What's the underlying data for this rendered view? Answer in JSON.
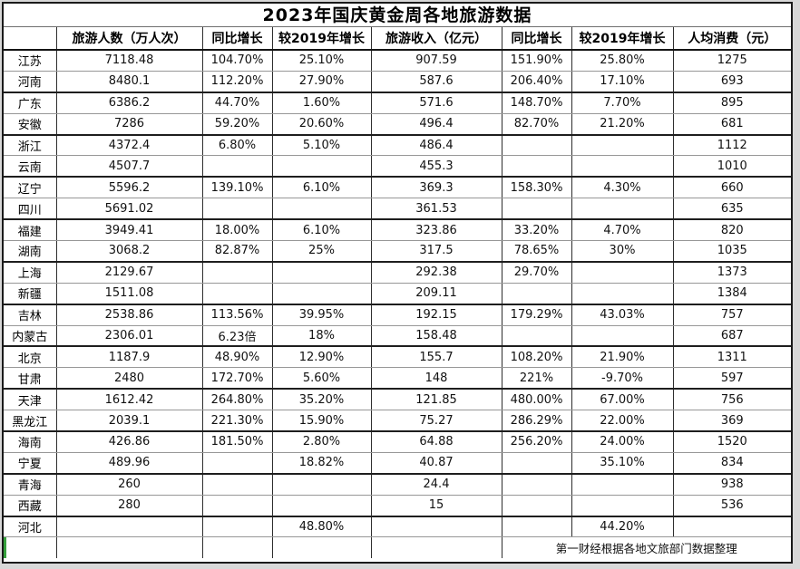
{
  "title": "2023年国庆黄金周各地旅游数据",
  "table": {
    "columns": [
      "",
      "旅游人数（万人次）",
      "同比增长",
      "较2019年增长",
      "旅游收入（亿元）",
      "同比增长",
      "较2019年增长",
      "人均消费（元）"
    ],
    "rows": [
      [
        "江苏",
        "7118.48",
        "104.70%",
        "25.10%",
        "907.59",
        "151.90%",
        "25.80%",
        "1275"
      ],
      [
        "河南",
        "8480.1",
        "112.20%",
        "27.90%",
        "587.6",
        "206.40%",
        "17.10%",
        "693"
      ],
      [
        "广东",
        "6386.2",
        "44.70%",
        "1.60%",
        "571.6",
        "148.70%",
        "7.70%",
        "895"
      ],
      [
        "安徽",
        "7286",
        "59.20%",
        "20.60%",
        "496.4",
        "82.70%",
        "21.20%",
        "681"
      ],
      [
        "浙江",
        "4372.4",
        "6.80%",
        "5.10%",
        "486.4",
        "",
        "",
        "1112"
      ],
      [
        "云南",
        "4507.7",
        "",
        "",
        "455.3",
        "",
        "",
        "1010"
      ],
      [
        "辽宁",
        "5596.2",
        "139.10%",
        "6.10%",
        "369.3",
        "158.30%",
        "4.30%",
        "660"
      ],
      [
        "四川",
        "5691.02",
        "",
        "",
        "361.53",
        "",
        "",
        "635"
      ],
      [
        "福建",
        "3949.41",
        "18.00%",
        "6.10%",
        "323.86",
        "33.20%",
        "4.70%",
        "820"
      ],
      [
        "湖南",
        "3068.2",
        "82.87%",
        "25%",
        "317.5",
        "78.65%",
        "30%",
        "1035"
      ],
      [
        "上海",
        "2129.67",
        "",
        "",
        "292.38",
        "29.70%",
        "",
        "1373"
      ],
      [
        "新疆",
        "1511.08",
        "",
        "",
        "209.11",
        "",
        "",
        "1384"
      ],
      [
        "吉林",
        "2538.86",
        "113.56%",
        "39.95%",
        "192.15",
        "179.29%",
        "43.03%",
        "757"
      ],
      [
        "内蒙古",
        "2306.01",
        "6.23倍",
        "18%",
        "158.48",
        "",
        "",
        "687"
      ],
      [
        "北京",
        "1187.9",
        "48.90%",
        "12.90%",
        "155.7",
        "108.20%",
        "21.90%",
        "1311"
      ],
      [
        "甘肃",
        "2480",
        "172.70%",
        "5.60%",
        "148",
        "221%",
        "-9.70%",
        "597"
      ],
      [
        "天津",
        "1612.42",
        "264.80%",
        "35.20%",
        "121.85",
        "480.00%",
        "67.00%",
        "756"
      ],
      [
        "黑龙江",
        "2039.1",
        "221.30%",
        "15.90%",
        "75.27",
        "286.29%",
        "22.00%",
        "369"
      ],
      [
        "海南",
        "426.86",
        "181.50%",
        "2.80%",
        "64.88",
        "256.20%",
        "24.00%",
        "1520"
      ],
      [
        "宁夏",
        "489.96",
        "",
        "18.82%",
        "40.87",
        "",
        "35.10%",
        "834"
      ],
      [
        "青海",
        "260",
        "",
        "",
        "24.4",
        "",
        "",
        "938"
      ],
      [
        "西藏",
        "280",
        "",
        "",
        "15",
        "",
        "",
        "536"
      ],
      [
        "河北",
        "",
        "",
        "48.80%",
        "",
        "",
        "44.20%",
        ""
      ]
    ]
  },
  "footer_note": "第一财经根据各地文旅部门数据整理",
  "colors": {
    "selection_green": "#35a03c",
    "border_dark": "#1a1a1a",
    "border_light": "#979797",
    "margin_gray": "#d8d8d8"
  }
}
